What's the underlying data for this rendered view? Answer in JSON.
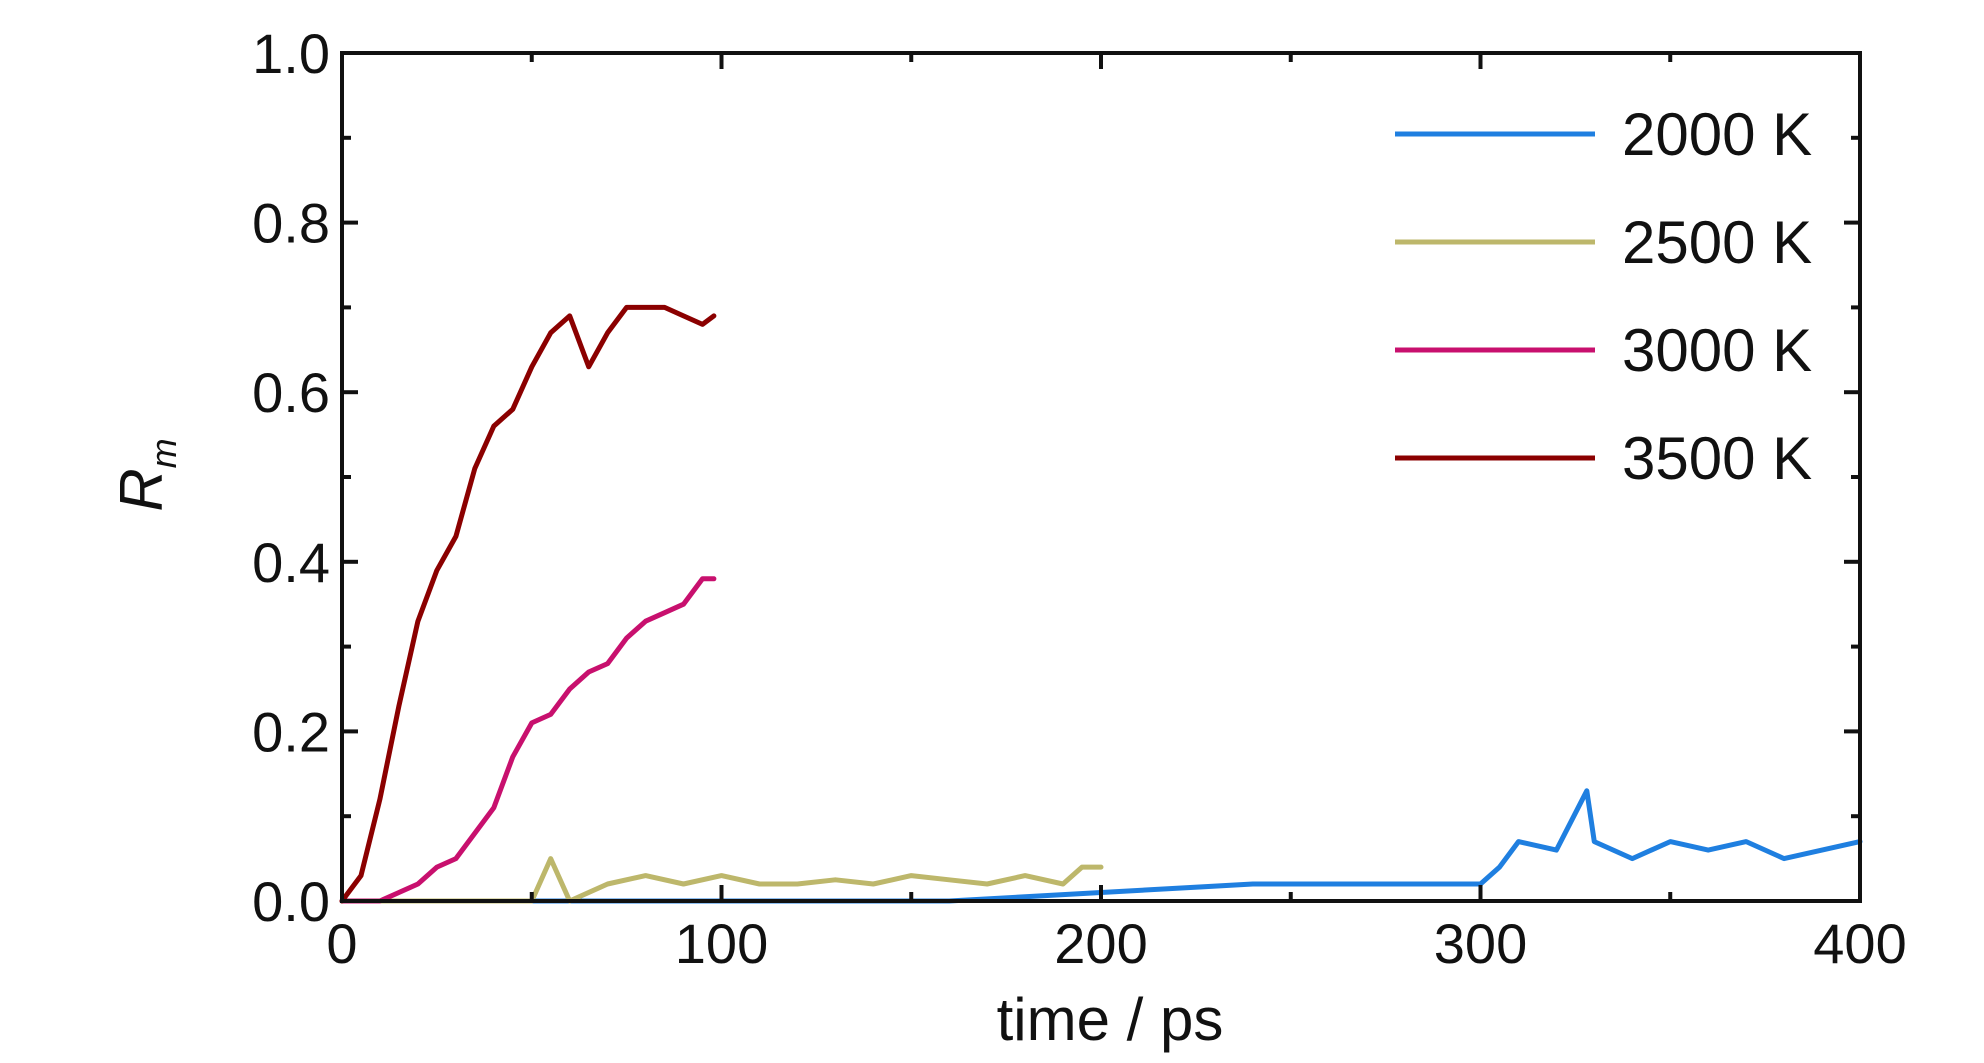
{
  "chart_data": {
    "type": "line",
    "title": "",
    "xlabel": "time / ps",
    "ylabel_main": "R",
    "ylabel_sub": "m",
    "xlim": [
      0,
      400
    ],
    "ylim": [
      0,
      1.0
    ],
    "x_ticks": [
      0,
      100,
      200,
      300,
      400
    ],
    "x_tick_labels": [
      "0",
      "100",
      "200",
      "300",
      "400"
    ],
    "y_ticks": [
      0,
      0.2,
      0.4,
      0.6,
      0.8,
      1.0
    ],
    "y_tick_labels": [
      "0.0",
      "0.2",
      "0.4",
      "0.6",
      "0.8",
      "1.0"
    ],
    "grid": false,
    "legend_position": "top-right",
    "series": [
      {
        "name": "2000 K",
        "color": "#1f7fe0",
        "x": [
          0,
          20,
          40,
          60,
          80,
          100,
          120,
          140,
          160,
          180,
          200,
          220,
          240,
          260,
          280,
          300,
          305,
          310,
          320,
          328,
          330,
          340,
          350,
          360,
          370,
          380,
          390,
          400
        ],
        "y": [
          0.0,
          0.0,
          0.0,
          0.0,
          0.0,
          0.0,
          0.0,
          0.0,
          0.0,
          0.005,
          0.01,
          0.015,
          0.02,
          0.02,
          0.02,
          0.02,
          0.04,
          0.07,
          0.06,
          0.13,
          0.07,
          0.05,
          0.07,
          0.06,
          0.07,
          0.05,
          0.06,
          0.07
        ]
      },
      {
        "name": "2500 K",
        "color": "#bdb76b",
        "x": [
          0,
          10,
          20,
          30,
          40,
          50,
          55,
          60,
          70,
          80,
          90,
          100,
          110,
          120,
          130,
          140,
          150,
          160,
          170,
          180,
          190,
          195,
          200
        ],
        "y": [
          0.0,
          0.0,
          0.0,
          0.0,
          0.0,
          0.0,
          0.05,
          0.0,
          0.02,
          0.03,
          0.02,
          0.03,
          0.02,
          0.02,
          0.025,
          0.02,
          0.03,
          0.025,
          0.02,
          0.03,
          0.02,
          0.04,
          0.04
        ]
      },
      {
        "name": "3000 K",
        "color": "#c8106e",
        "x": [
          0,
          5,
          10,
          15,
          20,
          25,
          30,
          35,
          40,
          45,
          50,
          55,
          60,
          65,
          70,
          75,
          80,
          85,
          90,
          95,
          98
        ],
        "y": [
          0.0,
          0.0,
          0.0,
          0.01,
          0.02,
          0.04,
          0.05,
          0.08,
          0.11,
          0.17,
          0.21,
          0.22,
          0.25,
          0.27,
          0.28,
          0.31,
          0.33,
          0.34,
          0.35,
          0.38,
          0.38
        ]
      },
      {
        "name": "3500 K",
        "color": "#8b0000",
        "x": [
          0,
          5,
          10,
          15,
          20,
          25,
          30,
          35,
          40,
          45,
          50,
          55,
          60,
          65,
          70,
          75,
          80,
          85,
          90,
          95,
          98
        ],
        "y": [
          0.0,
          0.03,
          0.12,
          0.23,
          0.33,
          0.39,
          0.43,
          0.51,
          0.56,
          0.58,
          0.63,
          0.67,
          0.69,
          0.63,
          0.67,
          0.7,
          0.7,
          0.7,
          0.69,
          0.68,
          0.69
        ]
      }
    ]
  }
}
